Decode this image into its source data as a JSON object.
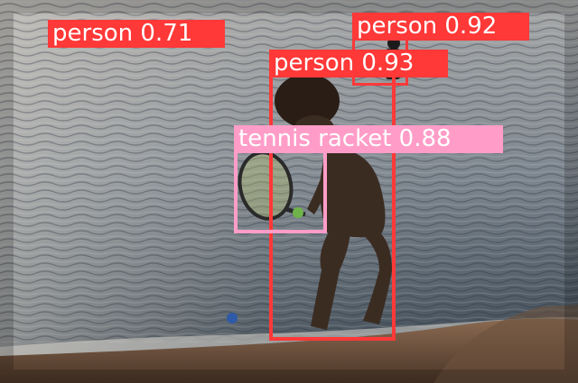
{
  "colors": {
    "person": "#ff3838",
    "tennis_racket": "#ff9dc8",
    "label_text": "#ffffff"
  },
  "detections": [
    {
      "label": "person 0.71",
      "class_name": "person"
    },
    {
      "label": "person 0.92",
      "class_name": "person"
    },
    {
      "label": "person 0.93",
      "class_name": "person"
    },
    {
      "label": "tennis racket 0.88",
      "class_name": "tennis racket"
    }
  ]
}
